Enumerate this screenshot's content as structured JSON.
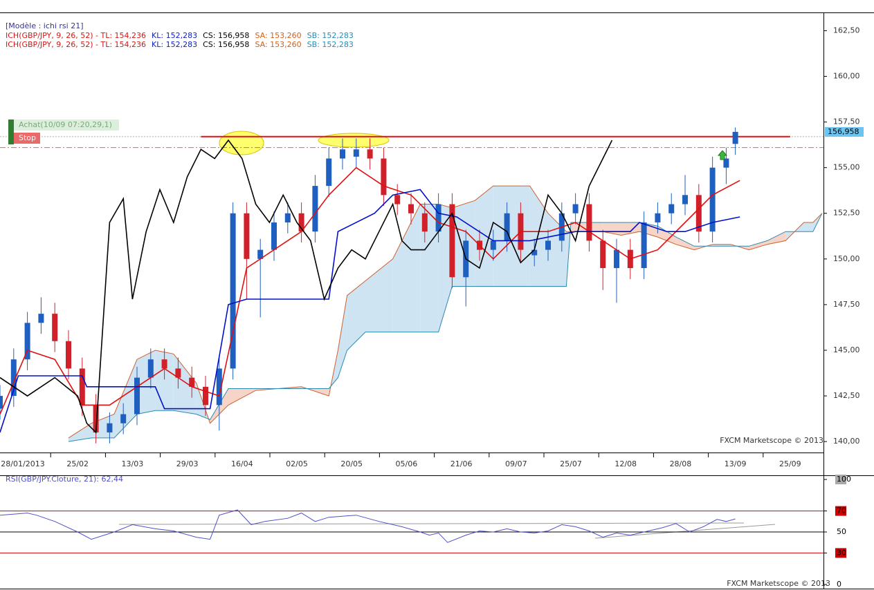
{
  "chart_data": [
    {
      "type": "candlestick",
      "header": "[Modèle : ichi rsi 21]",
      "legend_lines": [
        [
          {
            "text": "ICH(GBP/JPY, 9, 26, 52) -  TL: 154,236",
            "color": "#d01818"
          },
          {
            "text": "KL: 152,283",
            "color": "#1020c0"
          },
          {
            "text": "CS: 156,958",
            "color": "#000000"
          },
          {
            "text": "SA: 153,260",
            "color": "#d0601c"
          },
          {
            "text": "SB: 152,283",
            "color": "#2a8ab0"
          }
        ],
        [
          {
            "text": "ICH(GBP/JPY, 9, 26, 52) -  TL: 154,236",
            "color": "#d01818"
          },
          {
            "text": "KL: 152,283",
            "color": "#1020c0"
          },
          {
            "text": "CS: 156,958",
            "color": "#000000"
          },
          {
            "text": "SA: 153,260",
            "color": "#d0601c"
          },
          {
            "text": "SB: 152,283",
            "color": "#2a8ab0"
          }
        ]
      ],
      "x": [
        0,
        3,
        6,
        9,
        12,
        15,
        18,
        21,
        24,
        27,
        30,
        33,
        36,
        39,
        42,
        45,
        48,
        51,
        54,
        57,
        60,
        63,
        66,
        69,
        72,
        75,
        78,
        81,
        84,
        87,
        90,
        93,
        96,
        99,
        102,
        105,
        108,
        111,
        114,
        117,
        120,
        123,
        126,
        129,
        132,
        135,
        138,
        141,
        144,
        147,
        150,
        153,
        156,
        159,
        161
      ],
      "open": [
        141.8,
        142.5,
        144.5,
        146.5,
        147,
        145.5,
        144,
        142,
        140.5,
        141,
        141.5,
        143.5,
        144.5,
        144,
        143.5,
        143,
        142,
        144,
        152.5,
        150,
        150.5,
        152,
        152.5,
        151.5,
        154,
        155.5,
        155.6,
        156,
        155.5,
        153.5,
        153,
        152.5,
        151.5,
        153,
        149,
        151,
        150.5,
        151,
        152.5,
        150.2,
        150.5,
        151,
        152.5,
        153,
        151,
        149.5,
        150.5,
        149.5,
        152,
        152.5,
        153,
        153.5,
        151.5,
        155,
        156.3
      ],
      "high": [
        143.1,
        145.1,
        147.1,
        147.9,
        147.6,
        146.1,
        144.6,
        142.6,
        141.6,
        142.1,
        144.1,
        145.1,
        145.1,
        144.6,
        144.1,
        143.6,
        144.6,
        153.1,
        153.1,
        151.1,
        152.6,
        153.1,
        153.1,
        154.6,
        156.1,
        156.6,
        156.6,
        156.6,
        156.1,
        154.1,
        153.6,
        153.1,
        153.6,
        153.6,
        151.6,
        151.6,
        151.6,
        153.1,
        153.1,
        151.1,
        151.6,
        153.1,
        153.6,
        153.6,
        151.6,
        151.1,
        151.1,
        152.6,
        153.1,
        153.6,
        154.6,
        154.1,
        155.6,
        156.1,
        157.2
      ],
      "low": [
        141.2,
        141.9,
        143.9,
        145.9,
        144.9,
        143.4,
        141.4,
        139.9,
        139.9,
        140.4,
        140.9,
        142.9,
        143.4,
        142.9,
        142.4,
        141.4,
        140.6,
        143.4,
        147.8,
        146.8,
        149.9,
        151.4,
        150.9,
        150.9,
        153.4,
        154.9,
        155,
        154.9,
        152.9,
        152.4,
        151.9,
        150.9,
        150.9,
        148.4,
        147.4,
        149.9,
        149.9,
        150.4,
        149.9,
        149.6,
        149.9,
        150.4,
        151.9,
        150.4,
        148.3,
        147.6,
        148.9,
        148.9,
        151.4,
        151.9,
        152.4,
        150.9,
        150.9,
        154.1,
        155.7
      ],
      "close": [
        142.5,
        144.5,
        146.5,
        147,
        145.5,
        144,
        142,
        140.5,
        141,
        141.5,
        143.5,
        144.5,
        144,
        143.5,
        143,
        142,
        144,
        152.5,
        150,
        150.5,
        152,
        152.5,
        151.5,
        154,
        155.5,
        156,
        156,
        155.5,
        153.5,
        153,
        152.5,
        151.5,
        153,
        149,
        151,
        150.5,
        151,
        152.5,
        150.5,
        150.5,
        151,
        152.5,
        153,
        151,
        149.5,
        150.5,
        149.5,
        152,
        152.5,
        153,
        153.5,
        151.5,
        155,
        155.5,
        156.96
      ],
      "up_color": "#1f5fbf",
      "down_color": "#d0202a",
      "cloud": {
        "x": [
          15,
          20,
          25,
          30,
          34,
          38,
          43,
          46,
          50,
          56,
          66,
          72,
          74,
          76,
          80,
          86,
          92,
          96,
          99,
          104,
          108,
          116,
          120,
          124,
          125,
          128,
          132,
          136,
          140,
          144,
          148,
          152,
          156,
          160,
          164,
          168,
          172,
          176,
          178,
          180
        ],
        "span_a": [
          140.2,
          141,
          141.5,
          144.5,
          145,
          144.8,
          143.2,
          141,
          142,
          142.8,
          143,
          142.5,
          145,
          148,
          148.8,
          150,
          153,
          153,
          152.8,
          153.2,
          154,
          154,
          152.5,
          151.5,
          151.5,
          151.5,
          151.5,
          151.3,
          151.5,
          151.2,
          150.8,
          150.5,
          150.8,
          150.8,
          150.5,
          150.8,
          151,
          152,
          152,
          152.5
        ],
        "span_b": [
          140,
          140.2,
          140.2,
          141.5,
          141.7,
          141.7,
          141.5,
          141.2,
          142.9,
          142.9,
          142.9,
          142.9,
          143.5,
          145,
          146,
          146,
          146,
          146,
          148.5,
          148.5,
          148.5,
          148.5,
          148.5,
          148.5,
          152,
          152,
          152,
          152,
          152,
          151.8,
          151.2,
          150.7,
          150.7,
          150.7,
          150.7,
          151,
          151.5,
          151.5,
          151.5,
          152.5
        ],
        "a_color": "#d0602c",
        "b_color": "#2a8ab0",
        "bull_fill": "#cfe4f2",
        "bear_fill": "#f6d4c8"
      },
      "lines": [
        {
          "color": "#e01010",
          "x": [
            0,
            6,
            12,
            18,
            24,
            30,
            36,
            42,
            48,
            54,
            60,
            66,
            72,
            78,
            84,
            90,
            96,
            102,
            108,
            114,
            120,
            126,
            132,
            138,
            144,
            150,
            156,
            162
          ],
          "values": [
            141.5,
            145,
            144.5,
            142,
            142,
            143,
            144,
            143,
            142.5,
            149.5,
            150.5,
            151.5,
            153.5,
            155,
            154,
            153.5,
            152,
            151.5,
            150,
            151.5,
            151.5,
            152,
            151,
            150,
            150.5,
            152,
            153.5,
            154.3
          ]
        },
        {
          "color": "#0010c8",
          "x": [
            0,
            4,
            18,
            19,
            34,
            36,
            46,
            50,
            54,
            72,
            74,
            82,
            86,
            92,
            96,
            100,
            108,
            116,
            126,
            134,
            138,
            140,
            146,
            150,
            156,
            162
          ],
          "values": [
            140.5,
            143.6,
            143.6,
            143,
            143,
            141.8,
            141.8,
            147.5,
            147.8,
            147.8,
            151.5,
            152.5,
            153.5,
            153.8,
            152.5,
            152.3,
            151,
            151,
            151.5,
            151.5,
            151.5,
            152,
            151.5,
            151.5,
            152,
            152.3
          ]
        },
        {
          "color": "#000000",
          "x": [
            0,
            6,
            12,
            17,
            19,
            21,
            24,
            27,
            29,
            32,
            35,
            38,
            41,
            44,
            47,
            50,
            53,
            56,
            59,
            62,
            65,
            68,
            71,
            74,
            77,
            80,
            83,
            86,
            88,
            90,
            93,
            96,
            99,
            102,
            105,
            108,
            111,
            114,
            117,
            120,
            123,
            126,
            129,
            132,
            134
          ],
          "values": [
            143.5,
            142.5,
            143.5,
            142.5,
            141,
            140.5,
            152,
            153.3,
            147.8,
            151.5,
            153.8,
            152,
            154.5,
            156,
            155.5,
            156.5,
            155.5,
            153,
            152,
            153.5,
            152,
            151,
            147.8,
            149.5,
            150.5,
            150,
            151.5,
            153,
            151,
            150.5,
            150.5,
            151.5,
            152.5,
            150,
            149.5,
            152,
            151.5,
            149.8,
            150.5,
            153.5,
            152.5,
            151,
            154,
            155.5,
            156.5
          ]
        }
      ],
      "resistance": {
        "value": 156.7,
        "from": 44,
        "to": 173,
        "color": "#e01010"
      },
      "entry_level": 156.7,
      "stop_level": 156.1,
      "order_labels": [
        "Achat(10/09 07:20,29,1)",
        "Stop"
      ],
      "price_marker": {
        "value": 156.958,
        "label": "156,958"
      },
      "xlim": [
        0,
        180.3
      ],
      "xticks": [
        {
          "value": 5,
          "label": "28/01/2013"
        },
        {
          "value": 17,
          "label": "25/02"
        },
        {
          "value": 29,
          "label": "13/03"
        },
        {
          "value": 41,
          "label": "29/03"
        },
        {
          "value": 53,
          "label": "16/04"
        },
        {
          "value": 65,
          "label": "02/05"
        },
        {
          "value": 77,
          "label": "20/05"
        },
        {
          "value": 89,
          "label": "05/06"
        },
        {
          "value": 101,
          "label": "21/06"
        },
        {
          "value": 113,
          "label": "09/07"
        },
        {
          "value": 125,
          "label": "25/07"
        },
        {
          "value": 137,
          "label": "12/08"
        },
        {
          "value": 149,
          "label": "28/08"
        },
        {
          "value": 161,
          "label": "13/09"
        },
        {
          "value": 173,
          "label": "25/09"
        }
      ],
      "ylim": [
        139.4,
        163.5
      ],
      "yticks": [
        {
          "value": 140,
          "label": "140,00"
        },
        {
          "value": 142.5,
          "label": "142,50"
        },
        {
          "value": 145,
          "label": "145,00"
        },
        {
          "value": 147.5,
          "label": "147,50"
        },
        {
          "value": 150,
          "label": "150,00"
        },
        {
          "value": 152.5,
          "label": "152,50"
        },
        {
          "value": 155,
          "label": "155,00"
        },
        {
          "value": 157.5,
          "label": "157,50"
        },
        {
          "value": 160,
          "label": "160,00"
        },
        {
          "value": 162.5,
          "label": "162,50"
        }
      ],
      "watermark": "FXCM Marketscope © 2013"
    },
    {
      "type": "line",
      "title": "RSI(GBP/JPY.Cloture, 21): 62,44",
      "color": "#5050c8",
      "x": [
        0,
        6,
        8,
        12,
        17,
        20,
        25,
        29,
        34,
        38,
        43,
        46,
        48,
        52,
        55,
        58,
        63,
        66,
        69,
        72,
        78,
        83,
        88,
        92,
        94,
        96,
        98,
        102,
        105,
        108,
        111,
        114,
        117,
        120,
        123,
        126,
        129,
        132,
        135,
        138,
        142,
        145,
        148,
        151,
        154,
        157,
        159,
        161
      ],
      "values": [
        66,
        68,
        66,
        60,
        50,
        43,
        50,
        57,
        53,
        51,
        45,
        43,
        66,
        71,
        57,
        60,
        63,
        68,
        60,
        64,
        66,
        60,
        55,
        50,
        47,
        49,
        40,
        47,
        51,
        50,
        53,
        50,
        49,
        51,
        57,
        55,
        51,
        45,
        49,
        47,
        51,
        54,
        58,
        50,
        55,
        62,
        60,
        62.44
      ],
      "levels": [
        {
          "value": 70,
          "color": "#cc0000"
        },
        {
          "value": 50,
          "color": "#000000"
        },
        {
          "value": 30,
          "color": "#cc0000"
        }
      ],
      "xlim": [
        0,
        180.3
      ],
      "ylim": [
        0,
        100
      ],
      "yticks": [
        100,
        70,
        50,
        30,
        0
      ],
      "ytick_backgrounds": [
        "#a8a8a8",
        "#cc0000",
        null,
        "#cc0000",
        null
      ],
      "watermark": "FXCM Marketscope © 2013"
    }
  ]
}
